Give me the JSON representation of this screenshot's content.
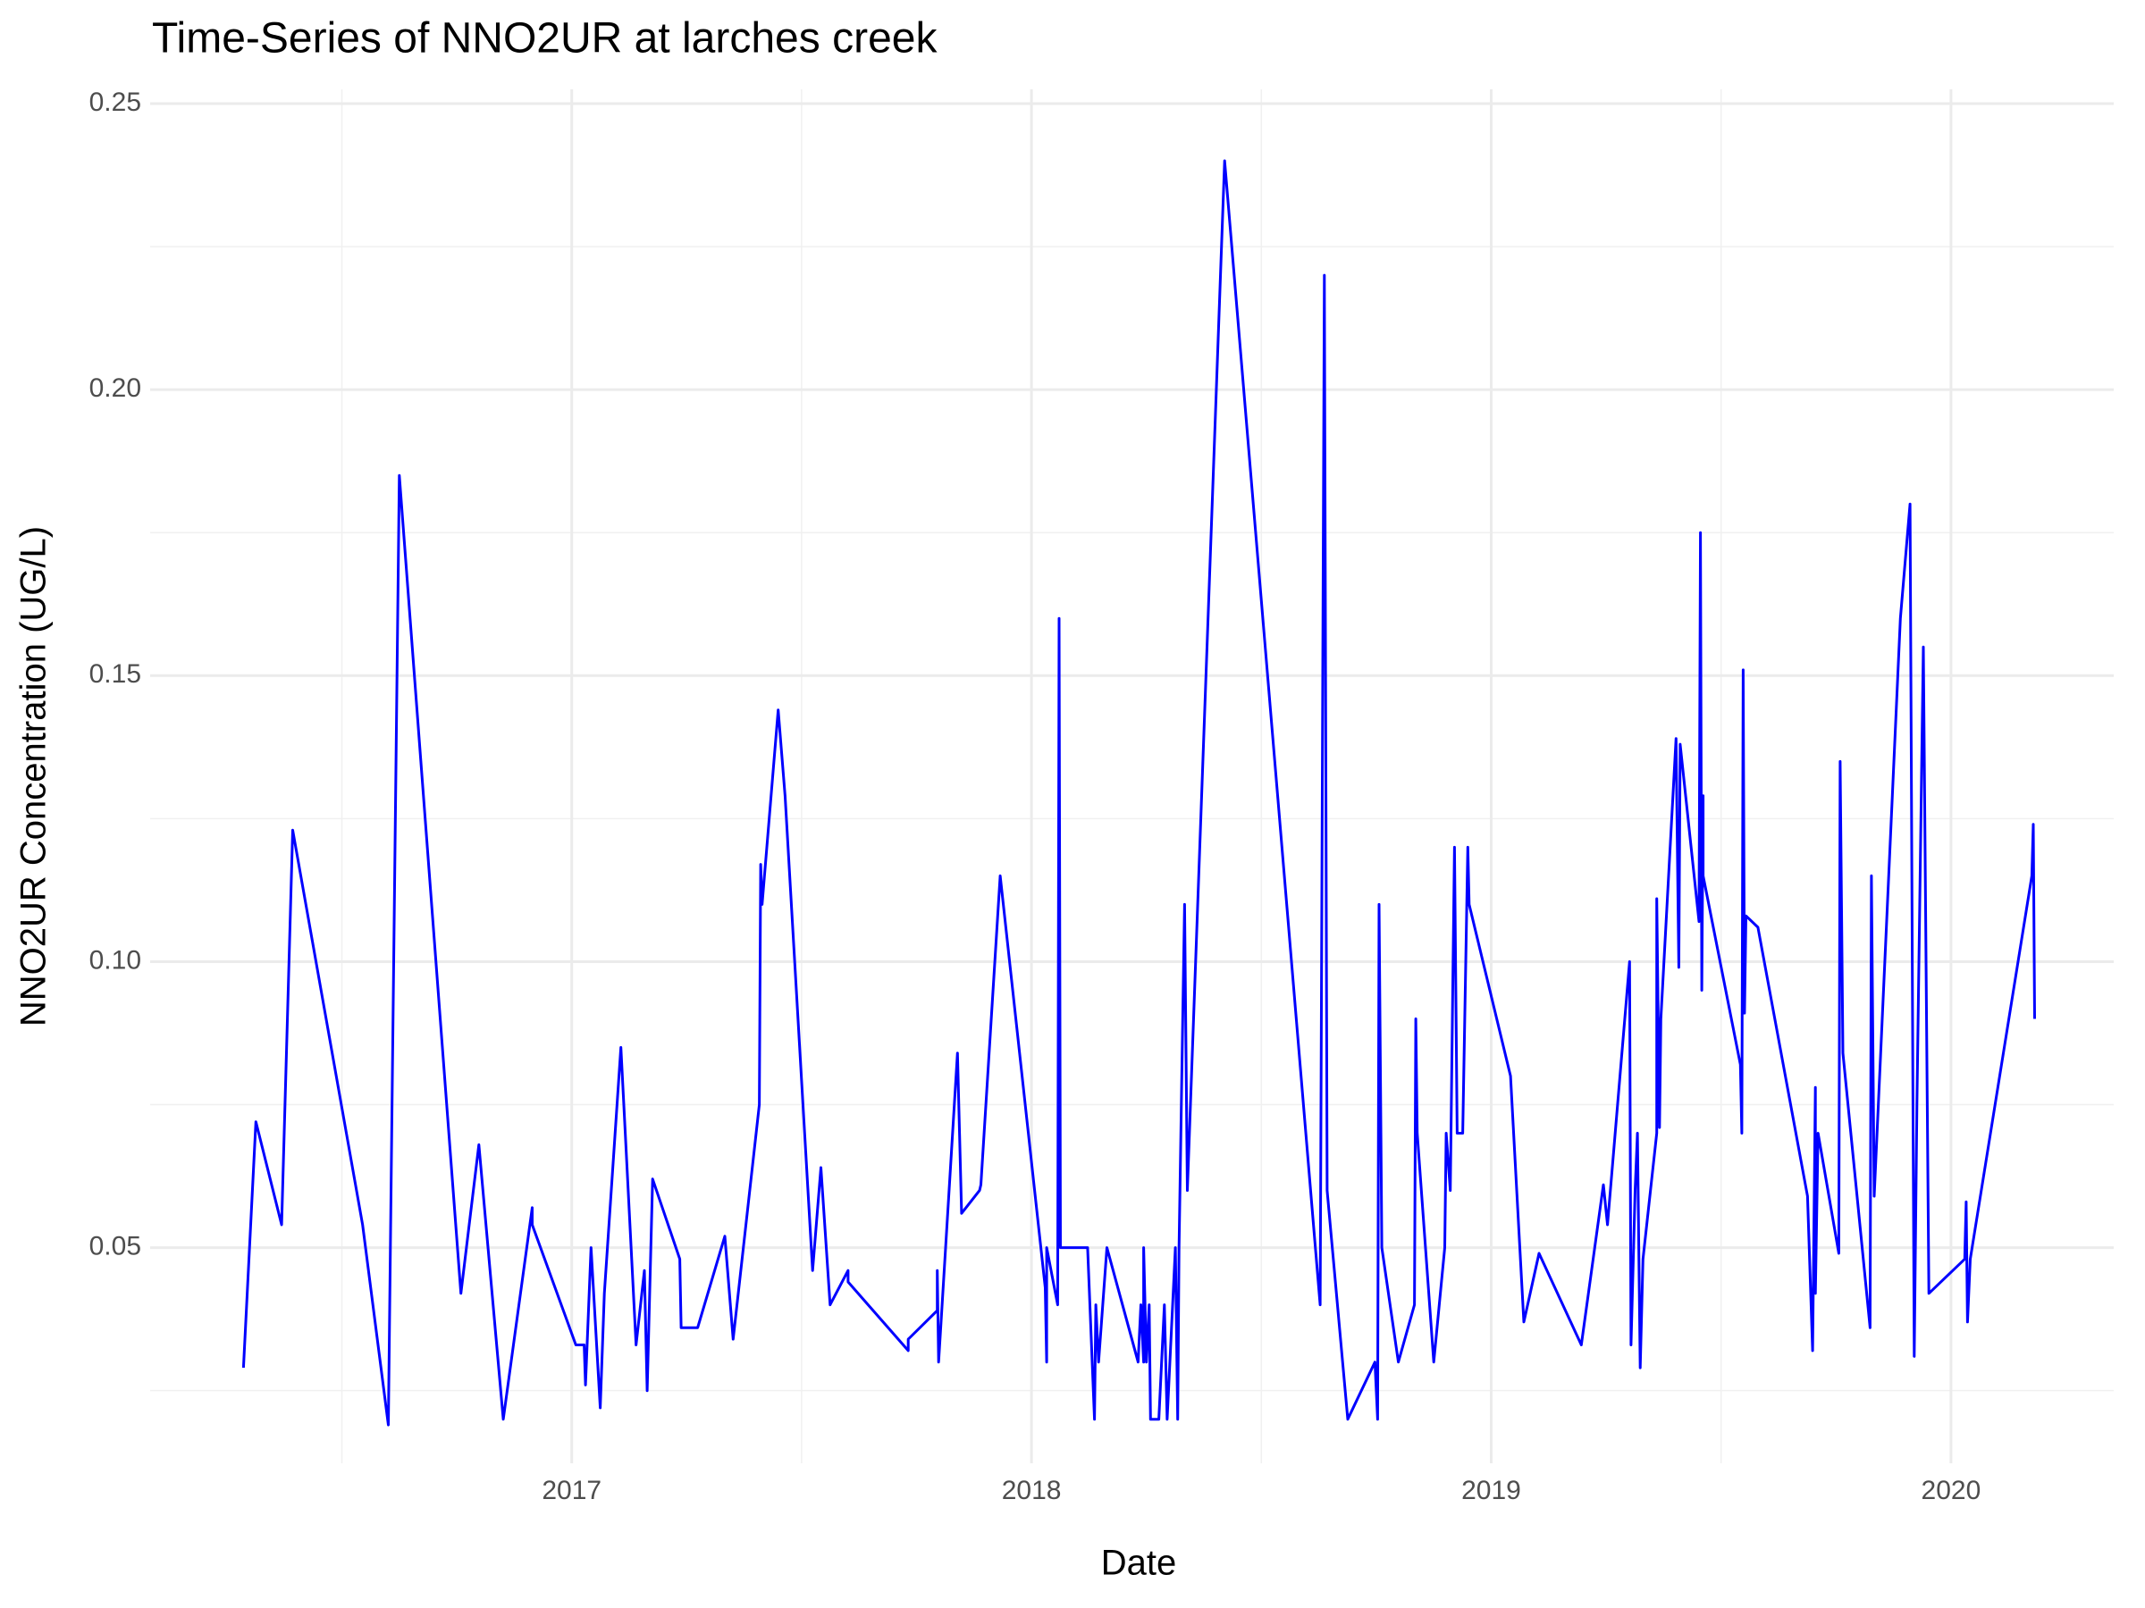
{
  "chart_data": {
    "type": "line",
    "title": "Time-Series of NNO2UR at larches creek",
    "x_label": "Date",
    "y_label": "NNO2UR Concentration (UG/L)",
    "color": "#0000ff",
    "grid": true,
    "xlim": [
      2016.083,
      2020.354
    ],
    "xticks": [
      2017,
      2018,
      2019,
      2020
    ],
    "ylim": [
      0.0123,
      0.2525
    ],
    "yticks": [
      0.05,
      {
        "value": 0.1,
        "label": "0.10"
      },
      0.15,
      {
        "value": 0.2,
        "label": "0.20"
      },
      0.25
    ],
    "x": [
      2016.286,
      2016.313,
      2016.369,
      2016.393,
      2016.545,
      2016.601,
      2016.625,
      2016.759,
      2016.798,
      2016.851,
      2016.914,
      2016.914,
      2017.009,
      2017.027,
      2017.03,
      2017.042,
      2017.062,
      2017.071,
      2017.107,
      2017.14,
      2017.158,
      2017.164,
      2017.176,
      2017.235,
      2017.238,
      2017.274,
      2017.333,
      2017.351,
      2017.408,
      2017.411,
      2017.414,
      2017.449,
      2017.464,
      2017.524,
      2017.542,
      2017.562,
      2017.601,
      2017.601,
      2017.732,
      2017.732,
      2017.795,
      2017.795,
      2017.798,
      2017.839,
      2017.848,
      2017.887,
      2017.89,
      2017.932,
      2018.03,
      2018.033,
      2018.033,
      2018.057,
      2018.06,
      2018.063,
      2018.122,
      2018.137,
      2018.14,
      2018.146,
      2018.164,
      2018.232,
      2018.238,
      2018.244,
      2018.244,
      2018.25,
      2018.256,
      2018.259,
      2018.277,
      2018.289,
      2018.295,
      2018.313,
      2018.318,
      2018.321,
      2018.333,
      2018.339,
      2018.42,
      2018.628,
      2018.631,
      2018.637,
      2018.643,
      2018.688,
      2018.747,
      2018.753,
      2018.756,
      2018.762,
      2018.798,
      2018.833,
      2018.836,
      2018.839,
      2018.875,
      2018.899,
      2018.902,
      2018.911,
      2018.92,
      2018.926,
      2018.938,
      2018.949,
      2018.952,
      2019.042,
      2019.071,
      2019.104,
      2019.196,
      2019.244,
      2019.253,
      2019.301,
      2019.304,
      2019.313,
      2019.318,
      2019.324,
      2019.33,
      2019.36,
      2019.36,
      2019.366,
      2019.369,
      2019.402,
      2019.408,
      2019.411,
      2019.452,
      2019.455,
      2019.458,
      2019.461,
      2019.461,
      2019.542,
      2019.545,
      2019.548,
      2019.551,
      2019.554,
      2019.58,
      2019.688,
      2019.699,
      2019.705,
      2019.705,
      2019.711,
      2019.756,
      2019.759,
      2019.765,
      2019.824,
      2019.827,
      2019.833,
      2019.89,
      2019.911,
      2019.92,
      2019.926,
      2019.94,
      2019.952,
      2020.03,
      2020.033,
      2020.036,
      2020.042,
      2020.176,
      2020.179,
      2020.182
    ],
    "values": [
      0.029,
      0.072,
      0.054,
      0.123,
      0.054,
      0.019,
      0.185,
      0.042,
      0.068,
      0.02,
      0.057,
      0.054,
      0.033,
      0.033,
      0.026,
      0.05,
      0.022,
      0.042,
      0.085,
      0.033,
      0.046,
      0.025,
      0.062,
      0.048,
      0.036,
      0.036,
      0.052,
      0.034,
      0.075,
      0.117,
      0.11,
      0.144,
      0.129,
      0.046,
      0.064,
      0.04,
      0.046,
      0.044,
      0.032,
      0.034,
      0.039,
      0.046,
      0.03,
      0.084,
      0.056,
      0.06,
      0.061,
      0.115,
      0.043,
      0.03,
      0.05,
      0.04,
      0.16,
      0.05,
      0.05,
      0.02,
      0.04,
      0.03,
      0.05,
      0.03,
      0.04,
      0.03,
      0.05,
      0.03,
      0.04,
      0.02,
      0.02,
      0.04,
      0.02,
      0.05,
      0.02,
      0.05,
      0.11,
      0.06,
      0.24,
      0.04,
      0.1,
      0.22,
      0.06,
      0.02,
      0.03,
      0.02,
      0.11,
      0.05,
      0.03,
      0.04,
      0.09,
      0.07,
      0.03,
      0.05,
      0.07,
      0.06,
      0.12,
      0.07,
      0.07,
      0.12,
      0.11,
      0.08,
      0.037,
      0.049,
      0.033,
      0.061,
      0.054,
      0.1,
      0.033,
      0.06,
      0.07,
      0.029,
      0.048,
      0.07,
      0.111,
      0.071,
      0.09,
      0.139,
      0.099,
      0.138,
      0.107,
      0.175,
      0.095,
      0.129,
      0.115,
      0.082,
      0.07,
      0.151,
      0.091,
      0.108,
      0.106,
      0.059,
      0.032,
      0.078,
      0.042,
      0.07,
      0.049,
      0.135,
      0.084,
      0.036,
      0.115,
      0.059,
      0.16,
      0.18,
      0.031,
      0.075,
      0.155,
      0.042,
      0.048,
      0.058,
      0.037,
      0.048,
      0.115,
      0.124,
      0.09
    ]
  }
}
